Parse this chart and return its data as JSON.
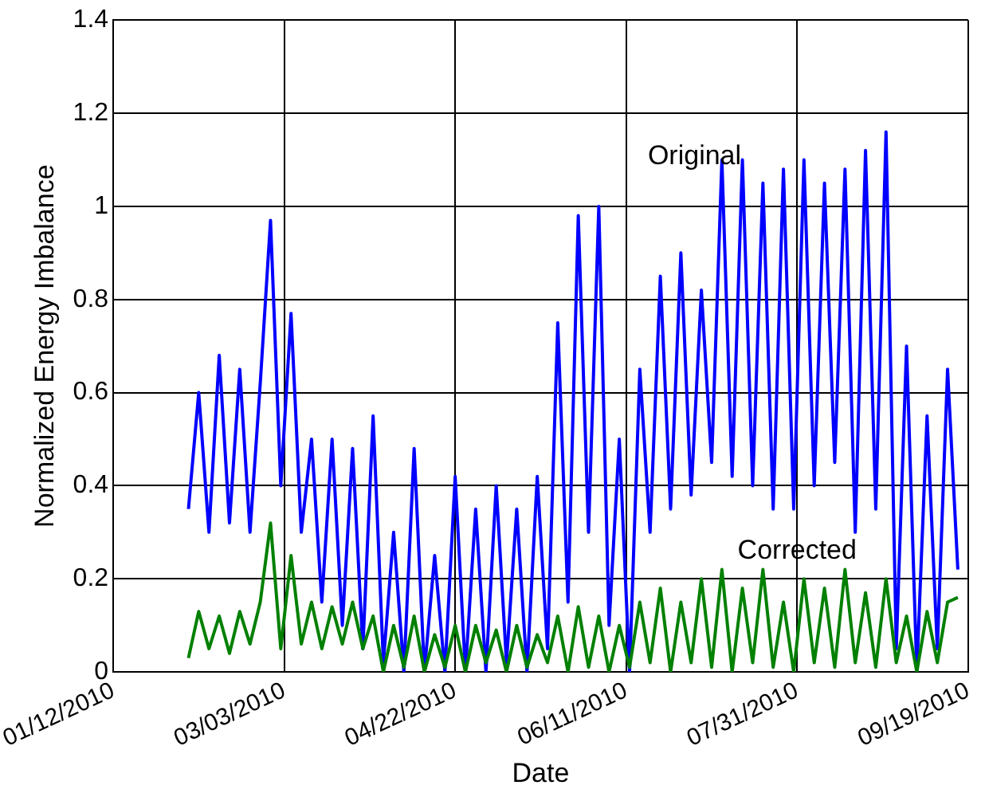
{
  "chart_data": {
    "type": "line",
    "xlabel": "Date",
    "ylabel": "Normalized Energy Imbalance",
    "x": [
      "2010-02-03",
      "2010-02-06",
      "2010-02-09",
      "2010-02-12",
      "2010-02-15",
      "2010-02-18",
      "2010-02-21",
      "2010-02-24",
      "2010-02-27",
      "2010-03-02",
      "2010-03-05",
      "2010-03-08",
      "2010-03-11",
      "2010-03-14",
      "2010-03-17",
      "2010-03-20",
      "2010-03-23",
      "2010-03-26",
      "2010-03-29",
      "2010-04-01",
      "2010-04-04",
      "2010-04-07",
      "2010-04-10",
      "2010-04-13",
      "2010-04-16",
      "2010-04-19",
      "2010-04-22",
      "2010-04-25",
      "2010-04-28",
      "2010-05-01",
      "2010-05-04",
      "2010-05-07",
      "2010-05-10",
      "2010-05-13",
      "2010-05-16",
      "2010-05-19",
      "2010-05-22",
      "2010-05-25",
      "2010-05-28",
      "2010-05-31",
      "2010-06-03",
      "2010-06-06",
      "2010-06-09",
      "2010-06-12",
      "2010-06-15",
      "2010-06-18",
      "2010-06-21",
      "2010-06-24",
      "2010-06-27",
      "2010-06-30",
      "2010-07-03",
      "2010-07-06",
      "2010-07-09",
      "2010-07-12",
      "2010-07-15",
      "2010-07-18",
      "2010-07-21",
      "2010-07-24",
      "2010-07-27",
      "2010-07-30",
      "2010-08-02",
      "2010-08-05",
      "2010-08-08",
      "2010-08-11",
      "2010-08-14",
      "2010-08-17",
      "2010-08-20",
      "2010-08-23",
      "2010-08-26",
      "2010-08-29",
      "2010-09-01",
      "2010-09-04",
      "2010-09-07",
      "2010-09-10",
      "2010-09-13",
      "2010-09-16"
    ],
    "series": [
      {
        "color": "#0000ff",
        "values": [
          0.35,
          0.6,
          0.3,
          0.68,
          0.32,
          0.65,
          0.3,
          0.62,
          0.97,
          0.4,
          0.77,
          0.3,
          0.5,
          0.15,
          0.5,
          0.1,
          0.48,
          0.05,
          0.55,
          0.02,
          0.3,
          0.0,
          0.48,
          0.0,
          0.25,
          0.0,
          0.42,
          0.0,
          0.35,
          0.0,
          0.4,
          0.02,
          0.35,
          0.0,
          0.42,
          0.05,
          0.75,
          0.15,
          0.98,
          0.3,
          1.0,
          0.1,
          0.5,
          0.0,
          0.65,
          0.3,
          0.85,
          0.35,
          0.9,
          0.38,
          0.82,
          0.45,
          1.1,
          0.42,
          1.1,
          0.4,
          1.05,
          0.35,
          1.08,
          0.35,
          1.1,
          0.4,
          1.05,
          0.45,
          1.08,
          0.3,
          1.12,
          0.35,
          1.16,
          0.05,
          0.7,
          0.0,
          0.55,
          0.05,
          0.65,
          0.22
        ]
      },
      {
        "color": "#008000",
        "values": [
          0.03,
          0.13,
          0.05,
          0.12,
          0.04,
          0.13,
          0.06,
          0.15,
          0.32,
          0.05,
          0.25,
          0.06,
          0.15,
          0.05,
          0.14,
          0.06,
          0.15,
          0.05,
          0.12,
          0.0,
          0.1,
          0.01,
          0.12,
          0.0,
          0.08,
          0.01,
          0.1,
          0.0,
          0.1,
          0.02,
          0.09,
          0.0,
          0.1,
          0.01,
          0.08,
          0.02,
          0.12,
          0.0,
          0.14,
          0.01,
          0.12,
          0.0,
          0.1,
          0.01,
          0.15,
          0.02,
          0.18,
          0.0,
          0.15,
          0.02,
          0.2,
          0.01,
          0.22,
          0.0,
          0.18,
          0.02,
          0.22,
          0.01,
          0.15,
          0.0,
          0.2,
          0.02,
          0.18,
          0.01,
          0.22,
          0.02,
          0.17,
          0.01,
          0.2,
          0.02,
          0.12,
          0.0,
          0.13,
          0.02,
          0.15,
          0.16
        ]
      }
    ],
    "xlim": [
      "2010-01-12",
      "2010-09-19"
    ],
    "xticks": [
      {
        "value": "2010-01-12",
        "label": "01/12/2010"
      },
      {
        "value": "2010-03-03",
        "label": "03/03/2010"
      },
      {
        "value": "2010-04-22",
        "label": "04/22/2010"
      },
      {
        "value": "2010-06-11",
        "label": "06/11/2010"
      },
      {
        "value": "2010-07-31",
        "label": "07/31/2010"
      },
      {
        "value": "2010-09-19",
        "label": "09/19/2010"
      }
    ],
    "ylim": [
      0,
      1.4
    ],
    "yticks": [
      0,
      0.2,
      0.4,
      0.6,
      0.8,
      1,
      1.2,
      1.4
    ],
    "grid": true,
    "legend": false,
    "marker": "none",
    "line_style": "solid",
    "annotations": [
      "Original",
      "Corrected"
    ]
  }
}
